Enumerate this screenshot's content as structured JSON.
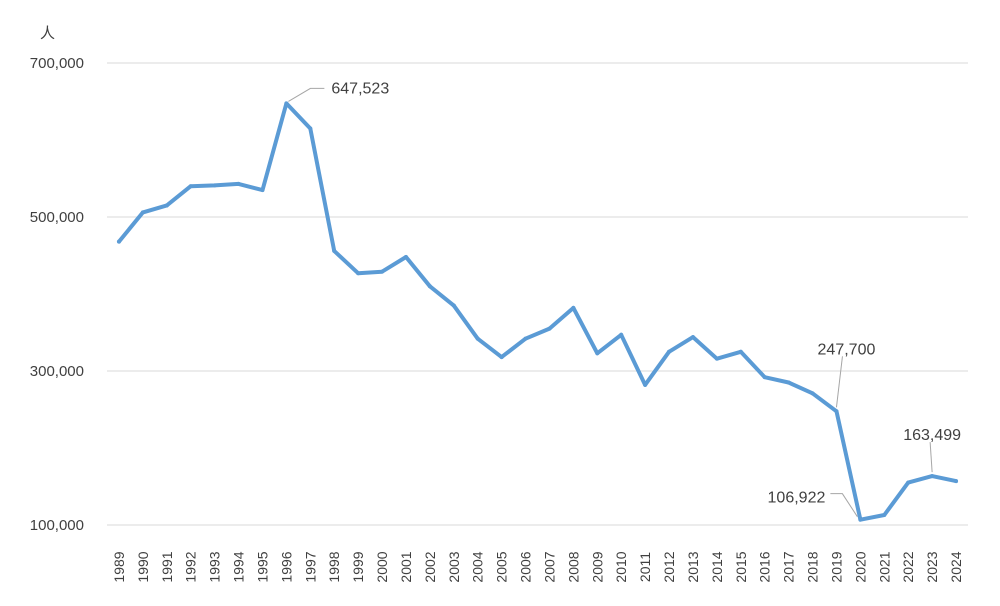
{
  "chart_data": {
    "type": "line",
    "title": "",
    "xlabel": "",
    "ylabel": "",
    "y_unit": "人",
    "ylim": [
      100000,
      700000
    ],
    "yticks": [
      100000,
      300000,
      500000,
      700000
    ],
    "ytick_labels": [
      "100,000",
      "300,000",
      "500,000",
      "700,000"
    ],
    "grid": true,
    "line_color": "#5b9bd5",
    "x": [
      "1989",
      "1990",
      "1991",
      "1992",
      "1993",
      "1994",
      "1995",
      "1996",
      "1997",
      "1998",
      "1999",
      "2000",
      "2001",
      "2002",
      "2003",
      "2004",
      "2005",
      "2006",
      "2007",
      "2008",
      "2009",
      "2010",
      "2011",
      "2012",
      "2013",
      "2014",
      "2015",
      "2016",
      "2017",
      "2018",
      "2019",
      "2020",
      "2021",
      "2022",
      "2023",
      "2024"
    ],
    "series": [
      {
        "values": [
          468000,
          506000,
          515000,
          540000,
          541000,
          543000,
          535000,
          647523,
          615000,
          456000,
          427000,
          429000,
          448000,
          410000,
          385000,
          342000,
          318000,
          342000,
          355000,
          382000,
          323000,
          347000,
          282000,
          325000,
          344000,
          316000,
          325000,
          292000,
          285000,
          271000,
          247700,
          106922,
          113000,
          155000,
          163499,
          157000
        ]
      }
    ],
    "annotations": [
      {
        "x": "1996",
        "label": "647,523"
      },
      {
        "x": "2019",
        "label": "247,700"
      },
      {
        "x": "2020",
        "label": "106,922"
      },
      {
        "x": "2023",
        "label": "163,499"
      }
    ]
  }
}
